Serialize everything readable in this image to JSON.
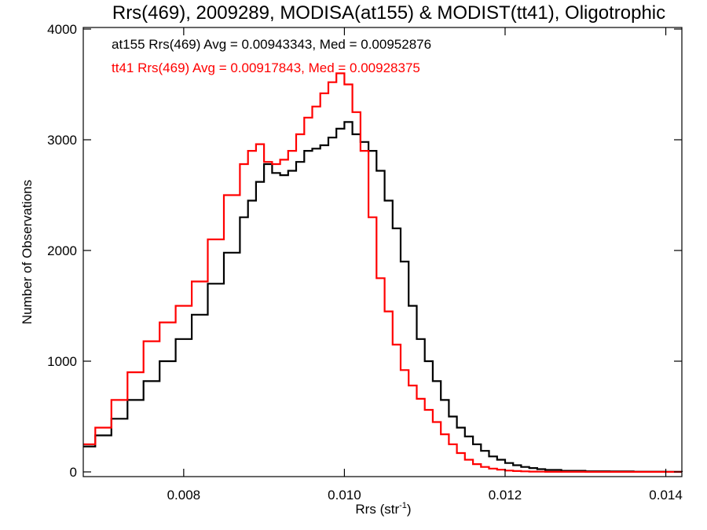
{
  "chart_data": {
    "type": "line",
    "title": "Rrs(469), 2009289, MODISA(at155) & MODIST(tt41), Oligotrophic",
    "xlabel": "Rrs (str",
    "xlabel_sup": "-1",
    "xlabel_end": ")",
    "ylabel": "Number of Observations",
    "xlim": [
      0.00675,
      0.0142
    ],
    "ylim": [
      0,
      4000
    ],
    "xticks": [
      0.008,
      0.01,
      0.012,
      0.014
    ],
    "xtick_labels": [
      "0.008",
      "0.010",
      "0.012",
      "0.014"
    ],
    "yticks": [
      0,
      1000,
      2000,
      3000,
      4000
    ],
    "ytick_labels": [
      "0",
      "1000",
      "2000",
      "3000",
      "4000"
    ],
    "grid": false,
    "step": true,
    "annotations": [
      {
        "text": "at155 Rrs(469) Avg = 0.00943343, Med = 0.00952876",
        "color": "#000000"
      },
      {
        "text": "tt41 Rrs(469) Avg = 0.00917843, Med = 0.00928375",
        "color": "#ff0000"
      }
    ],
    "series": [
      {
        "color": "#000000",
        "x": [
          0.00675,
          0.0069,
          0.0071,
          0.0073,
          0.0075,
          0.0077,
          0.0079,
          0.0081,
          0.0083,
          0.0085,
          0.0087,
          0.0088,
          0.0089,
          0.009,
          0.0091,
          0.0092,
          0.0093,
          0.0094,
          0.0095,
          0.0096,
          0.0097,
          0.0098,
          0.0099,
          0.01,
          0.0101,
          0.0102,
          0.0103,
          0.0104,
          0.0105,
          0.0106,
          0.0107,
          0.0108,
          0.0109,
          0.011,
          0.0111,
          0.0112,
          0.0113,
          0.0114,
          0.0115,
          0.0116,
          0.0117,
          0.0118,
          0.0119,
          0.012,
          0.0121,
          0.0122,
          0.0123,
          0.0124,
          0.0125,
          0.0127,
          0.013,
          0.0133,
          0.0136,
          0.014,
          0.0142
        ],
        "values": [
          230,
          330,
          480,
          650,
          820,
          1000,
          1200,
          1420,
          1700,
          1980,
          2300,
          2450,
          2620,
          2780,
          2700,
          2680,
          2720,
          2800,
          2900,
          2920,
          2950,
          3020,
          3100,
          3160,
          3050,
          2980,
          2900,
          2720,
          2450,
          2200,
          1900,
          1500,
          1200,
          1000,
          820,
          650,
          500,
          400,
          320,
          250,
          190,
          140,
          110,
          80,
          60,
          45,
          35,
          25,
          18,
          10,
          6,
          4,
          2,
          1,
          0
        ]
      },
      {
        "color": "#ff0000",
        "x": [
          0.00675,
          0.0069,
          0.0071,
          0.0073,
          0.0075,
          0.0077,
          0.0079,
          0.0081,
          0.0083,
          0.0085,
          0.0087,
          0.0088,
          0.0089,
          0.009,
          0.0091,
          0.0092,
          0.0093,
          0.0094,
          0.0095,
          0.0096,
          0.0097,
          0.0098,
          0.0099,
          0.01,
          0.0101,
          0.0102,
          0.0103,
          0.0104,
          0.0105,
          0.0106,
          0.0107,
          0.0108,
          0.0109,
          0.011,
          0.0111,
          0.0112,
          0.0113,
          0.0114,
          0.0115,
          0.0116,
          0.0117,
          0.0118,
          0.0119,
          0.012,
          0.0121,
          0.0122,
          0.0123,
          0.0124,
          0.0125,
          0.0127,
          0.013,
          0.0133,
          0.0136,
          0.014,
          0.0142
        ],
        "values": [
          250,
          400,
          650,
          900,
          1180,
          1350,
          1500,
          1720,
          2100,
          2500,
          2780,
          2900,
          2960,
          2800,
          2780,
          2820,
          2900,
          3050,
          3200,
          3300,
          3420,
          3520,
          3600,
          3500,
          3250,
          2900,
          2300,
          1750,
          1450,
          1150,
          920,
          780,
          660,
          560,
          450,
          340,
          250,
          170,
          110,
          70,
          45,
          30,
          20,
          12,
          8,
          5,
          3,
          2,
          1,
          1,
          0,
          0,
          0,
          0,
          0
        ]
      }
    ]
  }
}
